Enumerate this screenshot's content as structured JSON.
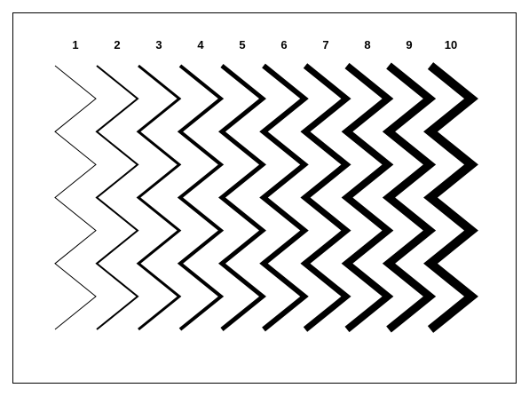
{
  "diagram": {
    "stroke_color": "#000000",
    "background": "#ffffff",
    "frame_color": "#000000",
    "lines": [
      {
        "label": "1",
        "weight": 1
      },
      {
        "label": "2",
        "weight": 2
      },
      {
        "label": "3",
        "weight": 3
      },
      {
        "label": "4",
        "weight": 4
      },
      {
        "label": "5",
        "weight": 5
      },
      {
        "label": "6",
        "weight": 6
      },
      {
        "label": "7",
        "weight": 7
      },
      {
        "label": "8",
        "weight": 8
      },
      {
        "label": "9",
        "weight": 9
      },
      {
        "label": "10",
        "weight": 10
      }
    ]
  }
}
